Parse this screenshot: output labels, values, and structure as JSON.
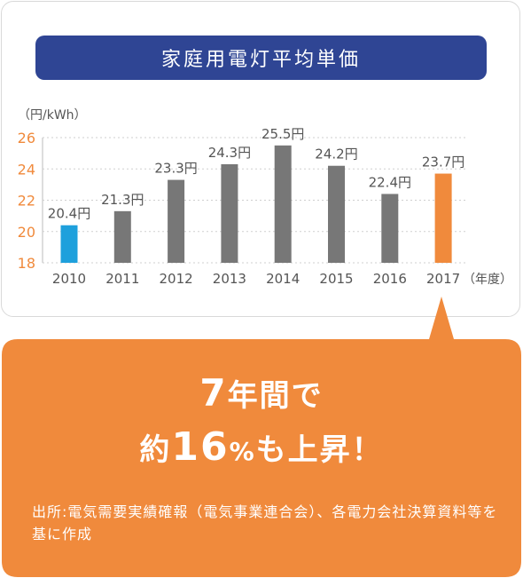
{
  "title": "家庭用電灯平均単価",
  "callout": {
    "line1_num": "7",
    "line1_text": "年間で",
    "line2_prefix": "約",
    "line2_num": "16",
    "line2_pct": "%",
    "line2_suffix": "も上昇！",
    "source": "出所:電気需要実績確報（電気事業連合会）、各電力会社決算資料等を基に作成"
  },
  "colors": {
    "title_bg": "#2f4594",
    "bar_default": "#777777",
    "bar_2010": "#1ea0dc",
    "bar_2017": "#f08a3c",
    "axis_tick": "#f08a3c",
    "callout_bg": "#f08a3c"
  },
  "chart_data": {
    "type": "bar",
    "categories": [
      "2010",
      "2011",
      "2012",
      "2013",
      "2014",
      "2015",
      "2016",
      "2017"
    ],
    "values": [
      20.4,
      21.3,
      23.3,
      24.3,
      25.5,
      24.2,
      22.4,
      23.7
    ],
    "data_labels": [
      "20.4円",
      "21.3円",
      "23.3円",
      "24.3円",
      "25.5円",
      "24.2円",
      "22.4円",
      "23.7円"
    ],
    "ylabel": "（円/kWh）",
    "xlabel": "（年度）",
    "ylim": [
      18,
      26
    ],
    "yticks": [
      "26",
      "24",
      "22",
      "20",
      "18"
    ],
    "grid": true,
    "legend": "none"
  }
}
